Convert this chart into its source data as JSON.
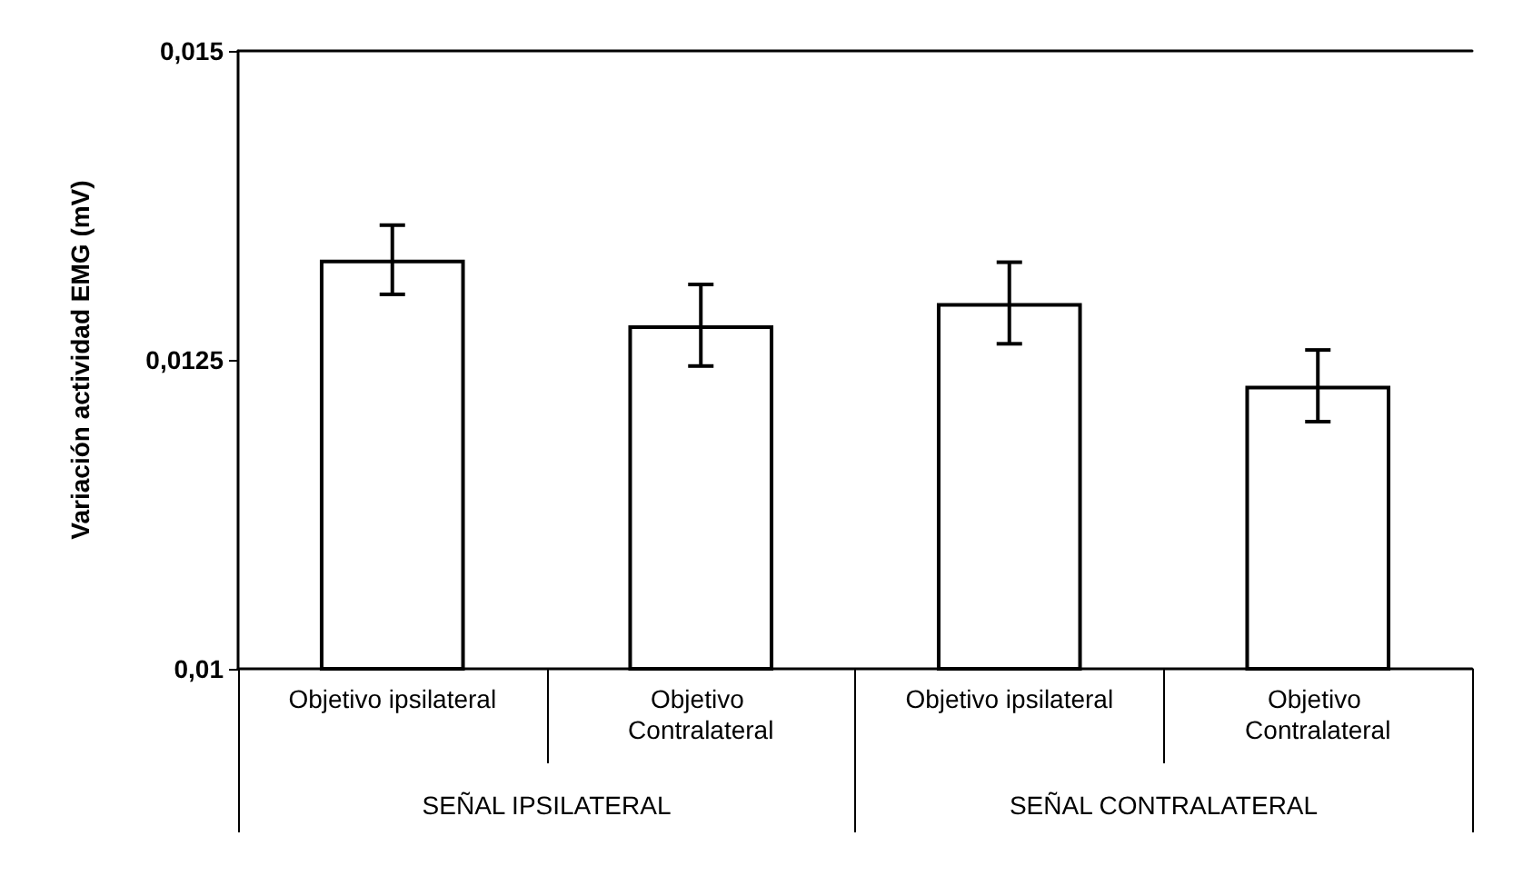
{
  "chart_data": {
    "type": "bar",
    "ylabel": "Variación actividad EMG (mV)",
    "categories": [
      "Objetivo ipsilateral",
      "Objetivo Contralateral",
      "Objetivo ipsilateral",
      "Objetivo Contralateral"
    ],
    "values": [
      0.01331,
      0.01278,
      0.01296,
      0.01229
    ],
    "errors": [
      0.00028,
      0.00033,
      0.00033,
      0.00029
    ],
    "color": "#ffffff",
    "ylim": [
      0.01,
      0.015
    ],
    "yticks": [
      {
        "value": 0.01,
        "label": "0,01"
      },
      {
        "value": 0.0125,
        "label": "0,0125"
      },
      {
        "value": 0.015,
        "label": "0,015"
      }
    ],
    "annotations": [
      "SEÑAL IPSILATERAL",
      "SEÑAL CONTRALATERAL"
    ],
    "grid": false
  }
}
